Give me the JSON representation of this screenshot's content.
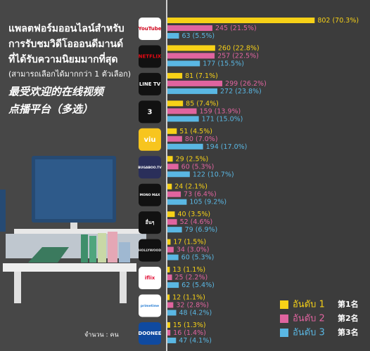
{
  "header": {
    "title": [
      "แพลตฟอร์มออนไลน์สำหรับ",
      "การรับชมวิดีโอออนดีมานด์",
      "ที่ได้รับความนิยมมากที่สุด"
    ],
    "subtitle": "(สามารถเลือกได้มากกว่า 1 ตัวเลือก)",
    "title_zh": [
      "最受欢迎的在线视频",
      "点播平台（多选）"
    ],
    "unit_note": "จำนวน : คน"
  },
  "chart_data": {
    "type": "bar",
    "orientation": "horizontal",
    "categories": [
      "YouTube",
      "NETFLIX",
      "LINE TV",
      "3",
      "viu",
      "BUGABOO.TV",
      "MONO MAX",
      "อื่นๆ",
      "HOLLYWOOD",
      "iflix",
      "primetime",
      "DOONEE"
    ],
    "series": [
      {
        "name": "อันดับ 1",
        "name_zh": "第1名",
        "color": "#f7d117",
        "values": [
          802,
          260,
          81,
          85,
          51,
          29,
          24,
          40,
          17,
          13,
          12,
          15
        ],
        "value_labels": [
          "802 (70.3%)",
          "260 (22.8%)",
          "81 (7.1%)",
          "85 (7.4%)",
          "51 (4.5%)",
          "29 (2.5%)",
          "24 (2.1%)",
          "40 (3.5%)",
          "17 (1.5%)",
          "13 (1.1%)",
          "12 (1.1%)",
          "15 (1.3%)"
        ]
      },
      {
        "name": "อันดับ 2",
        "name_zh": "第2名",
        "color": "#e0649f",
        "values": [
          245,
          257,
          299,
          159,
          80,
          60,
          73,
          52,
          34,
          25,
          32,
          16
        ],
        "value_labels": [
          "245 (21.5%)",
          "257 (22.5%)",
          "299 (26.2%)",
          "159 (13.9%)",
          "80 (7.0%)",
          "60 (5.3%)",
          "73 (6.4%)",
          "52 (4.6%)",
          "34 (3.0%)",
          "25 (2.2%)",
          "32 (2.8%)",
          "16 (1.4%)"
        ]
      },
      {
        "name": "อันดับ 3",
        "name_zh": "第3名",
        "color": "#5ab7e3",
        "values": [
          63,
          177,
          272,
          171,
          194,
          122,
          105,
          79,
          60,
          62,
          48,
          47
        ],
        "value_labels": [
          "63 (5.5%)",
          "177 (15.5%)",
          "272 (23.8%)",
          "171 (15.0%)",
          "194 (17.0%)",
          "122 (10.7%)",
          "105 (9.2%)",
          "79 (6.9%)",
          "60 (5.3%)",
          "62 (5.4%)",
          "48 (4.2%)",
          "47 (4.1%)"
        ]
      }
    ]
  }
}
